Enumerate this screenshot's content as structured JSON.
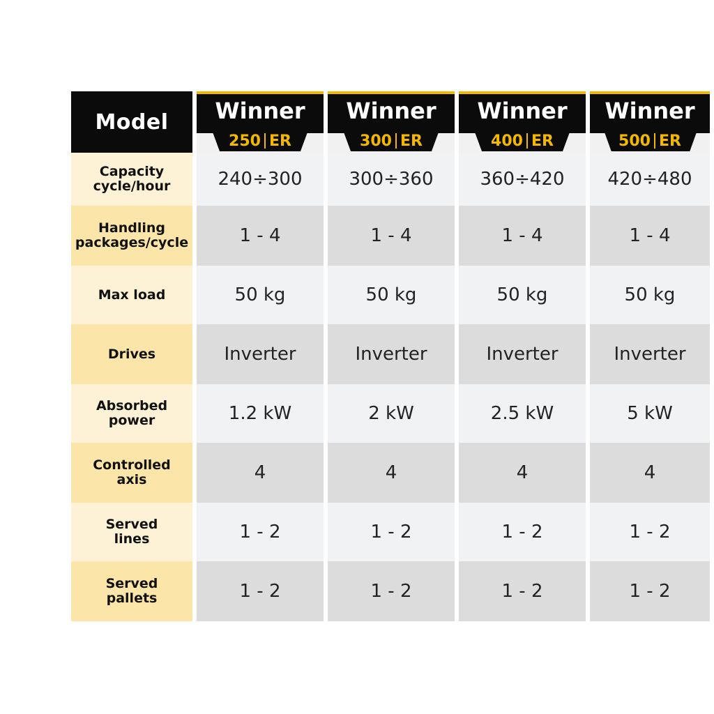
{
  "header": {
    "model_label": "Model",
    "models": [
      {
        "name": "Winner",
        "number": "250",
        "suffix": "ER"
      },
      {
        "name": "Winner",
        "number": "300",
        "suffix": "ER"
      },
      {
        "name": "Winner",
        "number": "400",
        "suffix": "ER"
      },
      {
        "name": "Winner",
        "number": "500",
        "suffix": "ER"
      }
    ]
  },
  "rows": [
    {
      "label_line1": "Capacity",
      "label_line2": "cycle/hour",
      "values": [
        "240÷300",
        "300÷360",
        "360÷420",
        "420÷480"
      ]
    },
    {
      "label_line1": "Handling",
      "label_line2": "packages/cycle",
      "values": [
        "1 - 4",
        "1 - 4",
        "1 - 4",
        "1 - 4"
      ]
    },
    {
      "label_line1": "Max load",
      "label_line2": "",
      "values": [
        "50 kg",
        "50 kg",
        "50 kg",
        "50 kg"
      ]
    },
    {
      "label_line1": "Drives",
      "label_line2": "",
      "values": [
        "Inverter",
        "Inverter",
        "Inverter",
        "Inverter"
      ]
    },
    {
      "label_line1": "Absorbed",
      "label_line2": "power",
      "values": [
        "1.2 kW",
        "2 kW",
        "2.5 kW",
        "5 kW"
      ]
    },
    {
      "label_line1": "Controlled",
      "label_line2": "axis",
      "values": [
        "4",
        "4",
        "4",
        "4"
      ]
    },
    {
      "label_line1": "Served",
      "label_line2": "lines",
      "values": [
        "1 - 2",
        "1 - 2",
        "1 - 2",
        "1 - 2"
      ]
    },
    {
      "label_line1": "Served",
      "label_line2": "pallets",
      "values": [
        "1 - 2",
        "1 - 2",
        "1 - 2",
        "1 - 2"
      ]
    }
  ],
  "colors": {
    "accent": "#f5b800",
    "header_bg": "#0b0b0b",
    "label_light": "#fdf2d6",
    "label_dark": "#fbe5a8",
    "cell_light": "#f1f2f3",
    "cell_dark": "#dcdcdc"
  }
}
